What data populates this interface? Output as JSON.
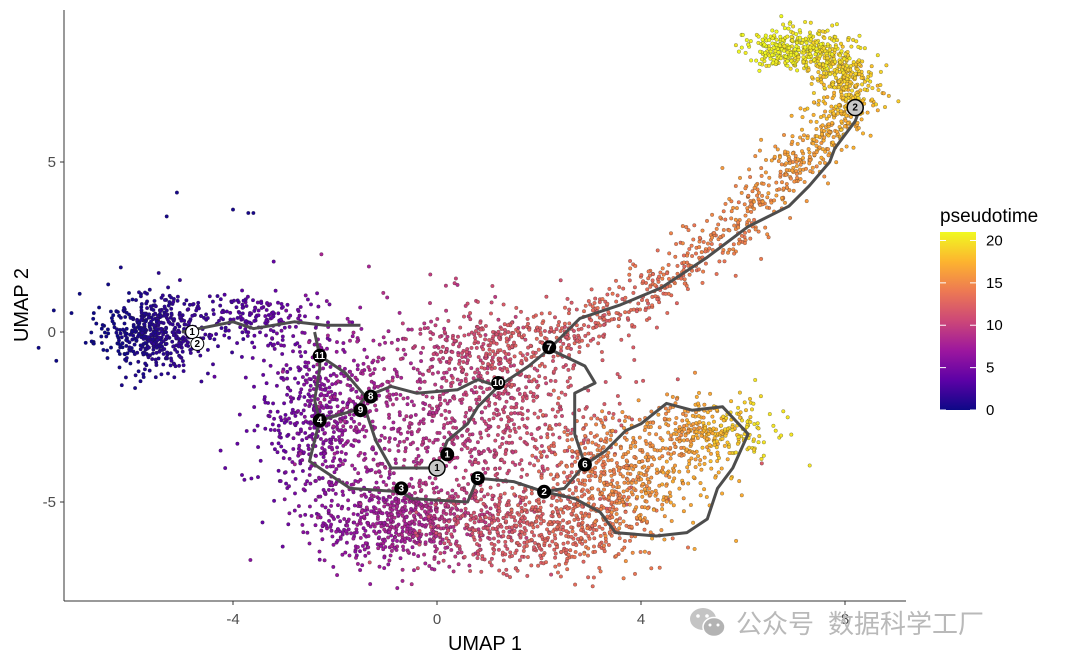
{
  "chart_data": {
    "type": "scatter",
    "xlabel": "UMAP 1",
    "ylabel": "UMAP 2",
    "xlim": [
      -7.0,
      9.0
    ],
    "ylim": [
      -8.0,
      9.5
    ],
    "x_ticks": [
      -4,
      0,
      4,
      8
    ],
    "y_ticks": [
      -5,
      0,
      5
    ],
    "grid": false,
    "legend": {
      "title": "pseudotime",
      "position": "right",
      "ticks": [
        0,
        5,
        10,
        15,
        20
      ],
      "range": [
        0,
        21
      ]
    },
    "colormap": [
      "#0d0887",
      "#5c01a6",
      "#9c179e",
      "#cc4778",
      "#ed7953",
      "#fdb42f",
      "#f0f921"
    ],
    "trajectory_color": "#4d4d4d",
    "cell_regions": [
      {
        "name": "left-cluster",
        "cx": -5.6,
        "cy": 0.0,
        "sx": 0.55,
        "sy": 0.55,
        "n": 520,
        "t0": 0,
        "t1": 2
      },
      {
        "name": "left-bridge",
        "cx": -3.6,
        "cy": 0.4,
        "sx": 0.7,
        "sy": 0.4,
        "n": 170,
        "t0": 2,
        "t1": 5
      },
      {
        "name": "left-mid",
        "cx": -2.2,
        "cy": -2.5,
        "sx": 0.65,
        "sy": 1.3,
        "n": 580,
        "t0": 4,
        "t1": 8
      },
      {
        "name": "bottom-left",
        "cx": -0.6,
        "cy": -5.6,
        "sx": 0.9,
        "sy": 0.65,
        "n": 620,
        "t0": 6,
        "t1": 10
      },
      {
        "name": "center",
        "cx": 0.8,
        "cy": -2.5,
        "sx": 1.3,
        "sy": 1.5,
        "n": 820,
        "t0": 8,
        "t1": 12
      },
      {
        "name": "center-top",
        "cx": 1.0,
        "cy": -0.4,
        "sx": 0.8,
        "sy": 0.5,
        "n": 230,
        "t0": 10,
        "t1": 13
      },
      {
        "name": "bottom",
        "cx": 2.0,
        "cy": -5.8,
        "sx": 1.0,
        "sy": 0.65,
        "n": 520,
        "t0": 11,
        "t1": 14
      },
      {
        "name": "right-mid",
        "cx": 3.6,
        "cy": -4.2,
        "sx": 0.8,
        "sy": 0.9,
        "n": 520,
        "t0": 13,
        "t1": 17
      },
      {
        "name": "right-arm",
        "cx": 5.4,
        "cy": -2.9,
        "sx": 0.6,
        "sy": 0.45,
        "n": 280,
        "t0": 15,
        "t1": 20
      }
    ],
    "upper_arm": [
      [
        2.3,
        -0.3
      ],
      [
        4.0,
        1.0
      ],
      [
        5.6,
        2.8
      ],
      [
        6.9,
        4.8
      ],
      [
        7.8,
        6.1
      ],
      [
        8.2,
        7.3
      ],
      [
        7.5,
        8.3
      ],
      [
        6.4,
        8.4
      ]
    ],
    "outlier_points": [
      [
        -5.1,
        4.1
      ],
      [
        -6.2,
        1.9
      ],
      [
        -3.7,
        3.5
      ],
      [
        -4.0,
        3.6
      ],
      [
        -5.3,
        3.4
      ],
      [
        -3.6,
        3.5
      ]
    ],
    "trajectory": [
      [
        [
          -5.0,
          0.0
        ],
        [
          -4.0,
          0.3
        ],
        [
          -3.6,
          0.1
        ],
        [
          -2.8,
          0.3
        ],
        [
          -2.2,
          0.2
        ],
        [
          -1.5,
          0.2
        ]
      ],
      [
        [
          -2.4,
          0.0
        ],
        [
          -2.3,
          -0.7
        ],
        [
          -2.3,
          -1.1
        ],
        [
          -2.4,
          -2.0
        ],
        [
          -2.3,
          -2.6
        ]
      ],
      [
        [
          -2.3,
          -0.7
        ],
        [
          -1.8,
          -1.2
        ],
        [
          -1.4,
          -1.9
        ],
        [
          -0.9,
          -1.6
        ],
        [
          -0.4,
          -1.8
        ],
        [
          0.4,
          -1.7
        ],
        [
          0.8,
          -1.4
        ],
        [
          1.2,
          -1.6
        ]
      ],
      [
        [
          -1.4,
          -1.9
        ],
        [
          -1.6,
          -2.3
        ],
        [
          -2.3,
          -2.6
        ]
      ],
      [
        [
          -2.3,
          -2.6
        ],
        [
          -2.5,
          -3.8
        ],
        [
          -1.7,
          -4.6
        ],
        [
          -0.7,
          -4.7
        ],
        [
          -0.5,
          -4.9
        ],
        [
          0.6,
          -5.0
        ],
        [
          0.8,
          -4.3
        ]
      ],
      [
        [
          -1.4,
          -2.3
        ],
        [
          -1.2,
          -3.2
        ],
        [
          -0.9,
          -4.0
        ],
        [
          0.0,
          -4.0
        ]
      ],
      [
        [
          1.2,
          -1.6
        ],
        [
          0.8,
          -2.2
        ],
        [
          0.6,
          -2.7
        ],
        [
          0.2,
          -3.2
        ],
        [
          0.1,
          -3.6
        ]
      ],
      [
        [
          1.2,
          -1.6
        ],
        [
          1.8,
          -1.0
        ],
        [
          2.2,
          -0.5
        ]
      ],
      [
        [
          2.2,
          -0.5
        ],
        [
          2.8,
          0.4
        ],
        [
          3.6,
          0.8
        ],
        [
          4.4,
          1.3
        ],
        [
          5.3,
          2.2
        ],
        [
          6.1,
          3.1
        ],
        [
          6.9,
          3.7
        ],
        [
          7.3,
          4.3
        ],
        [
          7.7,
          5.0
        ],
        [
          7.8,
          5.4
        ],
        [
          8.2,
          6.2
        ],
        [
          8.3,
          6.6
        ]
      ],
      [
        [
          2.2,
          -0.5
        ],
        [
          2.9,
          -1.0
        ],
        [
          3.1,
          -1.5
        ],
        [
          2.7,
          -1.8
        ],
        [
          2.7,
          -3.0
        ],
        [
          2.9,
          -3.9
        ]
      ],
      [
        [
          0.8,
          -4.3
        ],
        [
          1.5,
          -4.4
        ],
        [
          2.1,
          -4.7
        ],
        [
          2.5,
          -4.6
        ],
        [
          2.9,
          -3.9
        ]
      ],
      [
        [
          2.1,
          -4.7
        ],
        [
          2.7,
          -4.9
        ],
        [
          3.2,
          -5.3
        ],
        [
          3.5,
          -5.9
        ],
        [
          4.3,
          -6.0
        ],
        [
          4.9,
          -5.9
        ],
        [
          5.3,
          -5.5
        ],
        [
          5.5,
          -4.6
        ],
        [
          5.8,
          -4.0
        ],
        [
          6.1,
          -3.0
        ],
        [
          5.6,
          -2.2
        ],
        [
          5.0,
          -2.3
        ],
        [
          4.5,
          -2.1
        ],
        [
          4.0,
          -2.7
        ],
        [
          3.7,
          -2.9
        ],
        [
          3.3,
          -3.5
        ],
        [
          2.9,
          -3.9
        ]
      ]
    ],
    "nodes": [
      {
        "label": "1",
        "x": -4.8,
        "y": 0.0,
        "style": "white"
      },
      {
        "label": "2",
        "x": -4.7,
        "y": -0.35,
        "style": "white"
      },
      {
        "label": "11",
        "x": -2.3,
        "y": -0.7,
        "style": "black"
      },
      {
        "label": "8",
        "x": -1.3,
        "y": -1.9,
        "style": "black"
      },
      {
        "label": "9",
        "x": -1.5,
        "y": -2.3,
        "style": "black"
      },
      {
        "label": "4",
        "x": -2.3,
        "y": -2.6,
        "style": "black"
      },
      {
        "label": "10",
        "x": 1.2,
        "y": -1.5,
        "style": "black"
      },
      {
        "label": "7",
        "x": 2.2,
        "y": -0.45,
        "style": "black"
      },
      {
        "label": "1",
        "x": 0.2,
        "y": -3.6,
        "style": "black"
      },
      {
        "label": "1",
        "x": 0.0,
        "y": -4.0,
        "style": "grey"
      },
      {
        "label": "5",
        "x": 0.8,
        "y": -4.3,
        "style": "black"
      },
      {
        "label": "3",
        "x": -0.7,
        "y": -4.6,
        "style": "black"
      },
      {
        "label": "6",
        "x": 2.9,
        "y": -3.9,
        "style": "black"
      },
      {
        "label": "2",
        "x": 2.1,
        "y": -4.7,
        "style": "black"
      },
      {
        "label": "2",
        "x": 8.2,
        "y": 6.6,
        "style": "grey"
      }
    ]
  },
  "watermark": {
    "part1": "公众号",
    "part2": "数据科学工厂"
  }
}
